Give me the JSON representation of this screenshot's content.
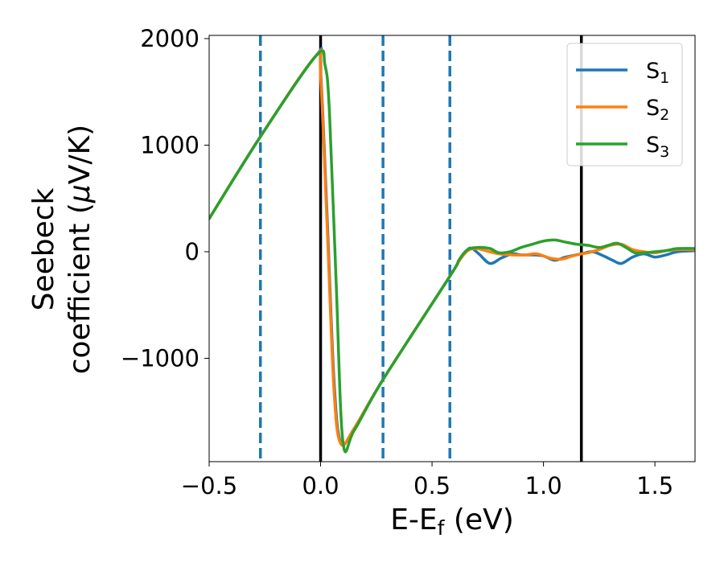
{
  "chart_data": {
    "type": "line",
    "xlabel": "E-E",
    "xlabel_sub": "f",
    "xlabel_unit": " (eV)",
    "ylabel_line1": "Seebeck",
    "ylabel_line2": "coefficient  (",
    "ylabel_mu": "μ",
    "ylabel_unit": "V/K)",
    "xlim": [
      -0.5,
      1.68
    ],
    "ylim": [
      -1970,
      2030
    ],
    "xticks": [
      -0.5,
      0.0,
      0.5,
      1.0,
      1.5
    ],
    "xtick_labels": [
      "−0.5",
      "0.0",
      "0.5",
      "1.0",
      "1.5"
    ],
    "yticks": [
      -1000,
      0,
      1000,
      2000
    ],
    "ytick_labels": [
      "−1000",
      "0",
      "1000",
      "2000"
    ],
    "grid": false,
    "legend_position": "top-right",
    "vlines_solid": [
      0.0,
      1.17
    ],
    "vlines_dashed": [
      -0.27,
      0.28,
      0.58
    ],
    "vline_solid_color": "#000000",
    "vline_dashed_color": "#1f77b4",
    "series": [
      {
        "name": "S",
        "name_sub": "1",
        "color": "#1f77b4",
        "x": [
          -0.5,
          -0.27,
          -0.02,
          0.0,
          0.03,
          0.06,
          0.09,
          0.15,
          0.28,
          0.58,
          0.62,
          0.66,
          0.68,
          0.71,
          0.76,
          0.81,
          0.86,
          0.9,
          0.95,
          1.0,
          1.05,
          1.1,
          1.17,
          1.22,
          1.27,
          1.31,
          1.35,
          1.4,
          1.45,
          1.5,
          1.55,
          1.6,
          1.68
        ],
        "y": [
          310,
          1080,
          1840,
          1700,
          300,
          -1200,
          -1790,
          -1660,
          -1200,
          -230,
          -90,
          20,
          30,
          -20,
          -110,
          -60,
          -20,
          -30,
          -30,
          -40,
          -80,
          -50,
          -20,
          0,
          -40,
          -80,
          -110,
          -50,
          -20,
          -50,
          -30,
          0,
          10
        ]
      },
      {
        "name": "S",
        "name_sub": "2",
        "color": "#ff7f0e",
        "x": [
          -0.5,
          -0.27,
          -0.02,
          0.0,
          0.03,
          0.06,
          0.09,
          0.15,
          0.28,
          0.58,
          0.62,
          0.66,
          0.7,
          0.74,
          0.8,
          0.86,
          0.92,
          0.97,
          1.03,
          1.08,
          1.13,
          1.17,
          1.2,
          1.25,
          1.3,
          1.35,
          1.4,
          1.45,
          1.5,
          1.55,
          1.6,
          1.68
        ],
        "y": [
          310,
          1080,
          1840,
          1650,
          200,
          -1300,
          -1800,
          -1660,
          -1200,
          -230,
          -90,
          10,
          30,
          10,
          -20,
          -30,
          -30,
          -20,
          -60,
          -70,
          -40,
          -20,
          -10,
          20,
          60,
          70,
          20,
          0,
          -10,
          10,
          20,
          20
        ]
      },
      {
        "name": "S",
        "name_sub": "3",
        "color": "#2ca02c",
        "x": [
          -0.5,
          -0.27,
          -0.02,
          0.02,
          0.04,
          0.07,
          0.1,
          0.15,
          0.28,
          0.58,
          0.62,
          0.66,
          0.71,
          0.76,
          0.8,
          0.85,
          0.9,
          0.95,
          1.0,
          1.05,
          1.1,
          1.15,
          1.2,
          1.25,
          1.29,
          1.33,
          1.37,
          1.41,
          1.45,
          1.5,
          1.55,
          1.6,
          1.68
        ],
        "y": [
          310,
          1080,
          1840,
          1750,
          1300,
          -300,
          -1780,
          -1680,
          -1200,
          -230,
          -80,
          20,
          40,
          30,
          -10,
          0,
          40,
          70,
          100,
          110,
          90,
          70,
          60,
          40,
          60,
          80,
          40,
          -10,
          -10,
          0,
          10,
          30,
          30
        ]
      }
    ]
  }
}
